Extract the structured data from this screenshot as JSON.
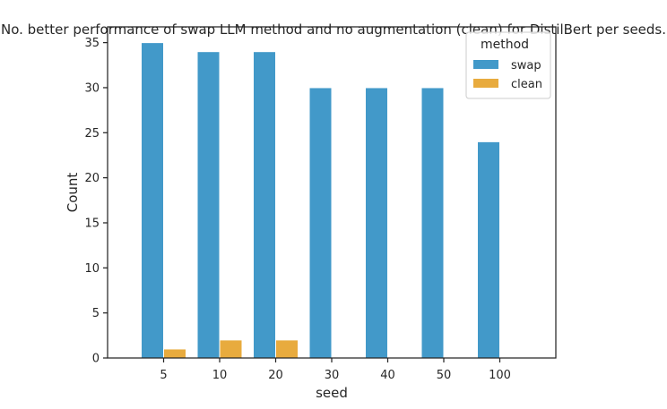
{
  "chart_data": {
    "type": "bar",
    "title": "No. better performance of swap LLM method and no augmentation (clean) for DistilBert per seeds.",
    "xlabel": "seed",
    "ylabel": "Count",
    "categories": [
      "5",
      "10",
      "20",
      "30",
      "40",
      "50",
      "100"
    ],
    "ylim": [
      0,
      36.75
    ],
    "yticks": [
      0,
      5,
      10,
      15,
      20,
      25,
      30,
      35
    ],
    "grid": false,
    "legend": {
      "title": "method",
      "placement": "top-right"
    },
    "series": [
      {
        "name": "swap",
        "color": "#4299c9",
        "values": [
          35,
          34,
          34,
          30,
          30,
          30,
          24
        ]
      },
      {
        "name": "clean",
        "color": "#e8ab3e",
        "values": [
          1,
          2,
          2,
          0,
          0,
          0,
          0
        ]
      }
    ]
  }
}
